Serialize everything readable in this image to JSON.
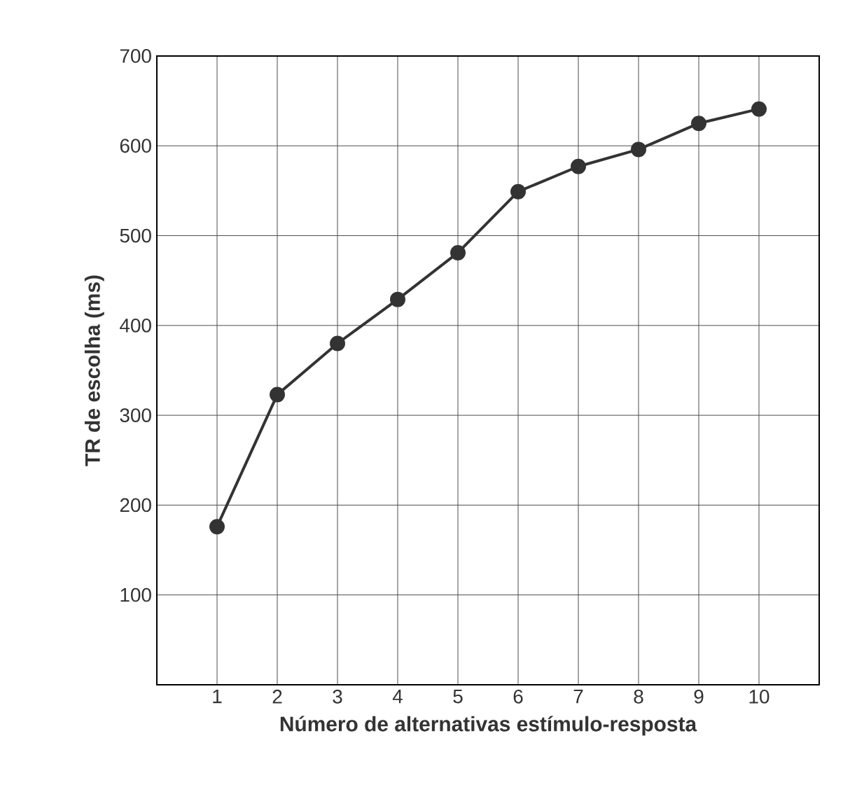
{
  "chart_data": {
    "type": "line",
    "xlabel": "Número de alternativas estímulo-resposta",
    "ylabel": "TR de escolha (ms)",
    "x": [
      1,
      2,
      3,
      4,
      5,
      6,
      7,
      8,
      9,
      10
    ],
    "series": [
      {
        "color": "#333333",
        "values": [
          176,
          323,
          380,
          429,
          481,
          549,
          577,
          596,
          625,
          641
        ]
      }
    ],
    "xlim": [
      0,
      11
    ],
    "xticks": [
      1,
      2,
      3,
      4,
      5,
      6,
      7,
      8,
      9,
      10
    ],
    "ylim": [
      0,
      700
    ],
    "yticks": [
      100,
      200,
      300,
      400,
      500,
      600,
      700
    ],
    "grid": true,
    "marker": "circle",
    "line_style": "solid"
  }
}
